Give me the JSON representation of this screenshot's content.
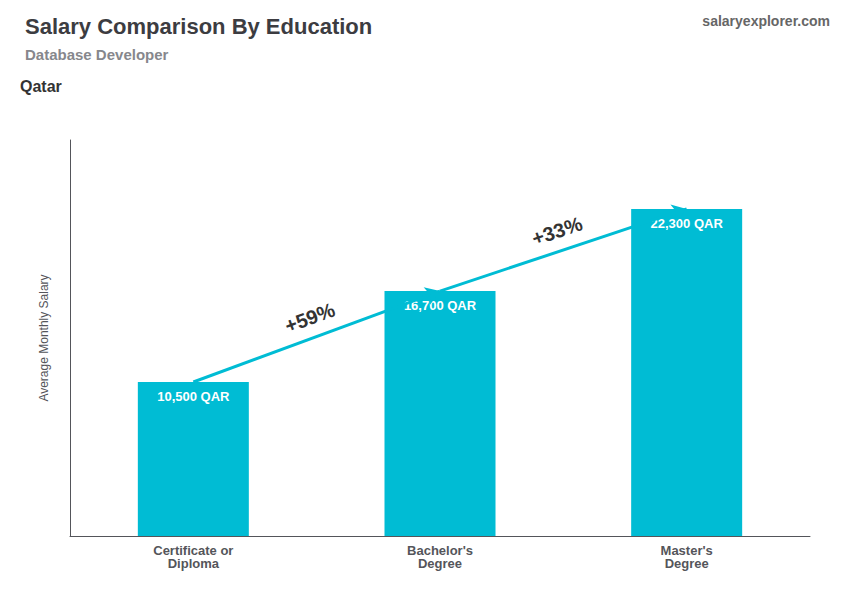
{
  "chart_data": {
    "type": "bar",
    "title": "Salary Comparison By Education",
    "subtitle": "Database Developer",
    "ylabel": "Average Monthly Salary",
    "categories": [
      "Certificate or\nDiploma",
      "Bachelor's\nDegree",
      "Master's\nDegree"
    ],
    "values": [
      10500,
      16700,
      22300
    ],
    "value_labels": [
      "10,500 QAR",
      "16,700 QAR",
      "22,300 QAR"
    ],
    "data_labels": true,
    "color": "#00bcd4",
    "ylim": [
      0,
      27000
    ],
    "tick_labels": "x",
    "grid": false,
    "annotations": [
      {
        "text": "Qatar"
      },
      {
        "text": "salaryexplorer.com"
      },
      {
        "text": "+59%",
        "between": [
          0,
          1
        ]
      },
      {
        "text": "+33%",
        "between": [
          1,
          2
        ]
      }
    ]
  }
}
